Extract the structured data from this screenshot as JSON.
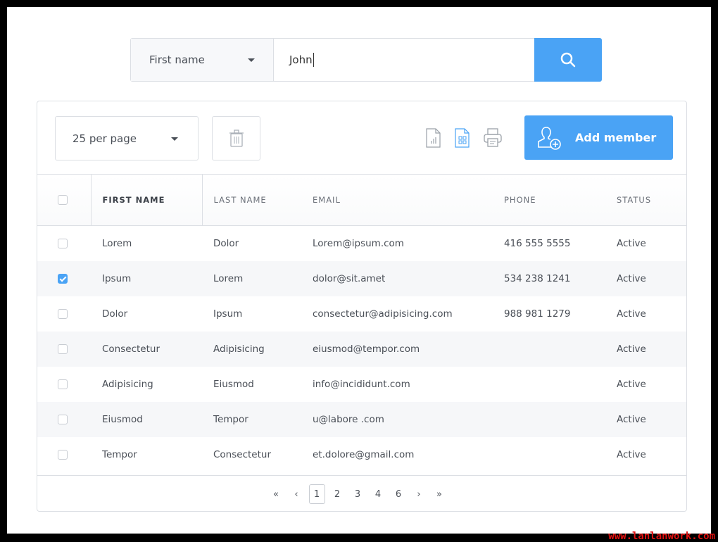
{
  "search": {
    "field": "First name",
    "value": "John",
    "icon": "search-icon"
  },
  "toolbar": {
    "per_page": "25 per page",
    "add_member": "Add member",
    "icons": [
      "trash-icon",
      "export-chart-file-icon",
      "export-grid-file-icon",
      "printer-icon",
      "add-user-icon"
    ]
  },
  "table": {
    "headers": [
      "FIRST NAME",
      "LAST NAME",
      "EMAIL",
      "PHONE",
      "STATUS"
    ],
    "rows": [
      {
        "checked": false,
        "first": "Lorem",
        "last": "Dolor",
        "email": "Lorem@ipsum.com",
        "phone": "416 555 5555",
        "status": "Active"
      },
      {
        "checked": true,
        "first": "Ipsum",
        "last": "Lorem",
        "email": "dolor@sit.amet",
        "phone": "534 238 1241",
        "status": "Active"
      },
      {
        "checked": false,
        "first": "Dolor",
        "last": "Ipsum",
        "email": "consectetur@adipisicing.com",
        "phone": "988 981 1279",
        "status": "Active"
      },
      {
        "checked": false,
        "first": "Consectetur",
        "last": "Adipisicing",
        "email": "eiusmod@tempor.com",
        "phone": "",
        "status": "Active"
      },
      {
        "checked": false,
        "first": "Adipisicing",
        "last": "Eiusmod",
        "email": "info@incididunt.com",
        "phone": "",
        "status": "Active"
      },
      {
        "checked": false,
        "first": "Eiusmod",
        "last": "Tempor",
        "email": "u@labore .com",
        "phone": "",
        "status": "Active"
      },
      {
        "checked": false,
        "first": "Tempor",
        "last": "Consectetur",
        "email": "et.dolore@gmail.com",
        "phone": "",
        "status": "Active"
      }
    ]
  },
  "pagination": {
    "first": "«",
    "prev": "‹",
    "pages": [
      "1",
      "2",
      "3",
      "4",
      "6"
    ],
    "current": "1",
    "next": "›",
    "last": "»"
  },
  "watermark": "www.lanlanwork.com",
  "colors": {
    "accent": "#4aa3f5"
  }
}
